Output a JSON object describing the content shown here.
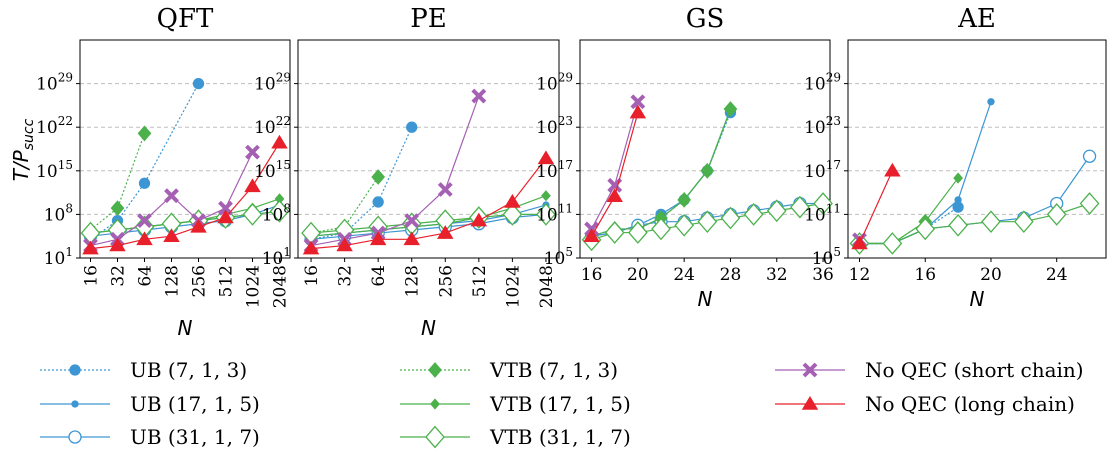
{
  "chart_data": {
    "type": "line",
    "ylabel": "T/P_succ",
    "yscale": "log10",
    "ylim_exp": [
      1,
      36
    ],
    "ytick_exps": [
      1,
      8,
      15,
      22,
      29
    ],
    "gs_ylim_exp": [
      5,
      35
    ],
    "gs_ytick_exps": [
      5,
      11,
      17,
      23,
      29
    ],
    "series_styles": [
      {
        "key": "ub713",
        "name": "UB (7, 1, 3)",
        "color": "#3d96d4",
        "marker": "circle",
        "fill": true,
        "size": 5,
        "dash": "2,2"
      },
      {
        "key": "ub1715",
        "name": "UB (17, 1, 5)",
        "color": "#3d96d4",
        "marker": "circle",
        "fill": true,
        "size": 3,
        "dash": ""
      },
      {
        "key": "ub3117",
        "name": "UB (31, 1, 7)",
        "color": "#3d96d4",
        "marker": "circle",
        "fill": false,
        "size": 6,
        "dash": ""
      },
      {
        "key": "vtb713",
        "name": "VTB (7, 1, 3)",
        "color": "#4bb14b",
        "marker": "diamond",
        "fill": true,
        "size": 6,
        "dash": "2,2"
      },
      {
        "key": "vtb1715",
        "name": "VTB (17, 1, 5)",
        "color": "#4bb14b",
        "marker": "diamond",
        "fill": true,
        "size": 4,
        "dash": ""
      },
      {
        "key": "vtb3117",
        "name": "VTB (31, 1, 7)",
        "color": "#4bb14b",
        "marker": "diamond",
        "fill": false,
        "size": 9,
        "dash": ""
      },
      {
        "key": "noqec_short",
        "name": "No QEC (short chain)",
        "color": "#a560b3",
        "marker": "x",
        "fill": true,
        "size": 6,
        "dash": ""
      },
      {
        "key": "noqec_long",
        "name": "No QEC (long chain)",
        "color": "#e8202b",
        "marker": "triangle",
        "fill": true,
        "size": 7,
        "dash": ""
      }
    ],
    "panels": [
      {
        "title": "QFT",
        "xlabel": "N",
        "xscale": "cat",
        "x_ticks": [
          "16",
          "32",
          "64",
          "128",
          "256",
          "512",
          "1024",
          "2048"
        ],
        "ylim_exp": [
          1,
          36
        ],
        "ytick_exps": [
          1,
          8,
          15,
          22,
          29
        ],
        "series": {
          "ub713": [
            [
              0,
              4
            ],
            [
              1,
              7
            ],
            [
              2,
              13
            ],
            [
              4,
              29
            ]
          ],
          "ub1715": [
            [
              0,
              5
            ],
            [
              1,
              5.5
            ],
            [
              2,
              6
            ],
            [
              3,
              6.5
            ],
            [
              4,
              7
            ],
            [
              5,
              7.5
            ],
            [
              6,
              8
            ],
            [
              7,
              9.5
            ]
          ],
          "ub3117": [
            [
              0,
              4.5
            ],
            [
              1,
              5
            ],
            [
              2,
              5.5
            ],
            [
              3,
              6
            ],
            [
              4,
              6.5
            ],
            [
              5,
              7
            ],
            [
              6,
              8
            ],
            [
              7,
              8.5
            ]
          ],
          "vtb713": [
            [
              0,
              5.5
            ],
            [
              1,
              9
            ],
            [
              2,
              21
            ]
          ],
          "vtb1715": [
            [
              0,
              5
            ],
            [
              1,
              5.5
            ],
            [
              2,
              6
            ],
            [
              3,
              6.5
            ],
            [
              4,
              7
            ],
            [
              5,
              8
            ],
            [
              6,
              9
            ],
            [
              7,
              10.5
            ]
          ],
          "vtb3117": [
            [
              0,
              5
            ],
            [
              1,
              5.5
            ],
            [
              2,
              6
            ],
            [
              3,
              6.5
            ],
            [
              4,
              7
            ],
            [
              5,
              7.5
            ],
            [
              6,
              8
            ],
            [
              7,
              8.5
            ]
          ],
          "noqec_short": [
            [
              0,
              3
            ],
            [
              1,
              4
            ],
            [
              2,
              7
            ],
            [
              3,
              11
            ],
            [
              4,
              7
            ],
            [
              5,
              9
            ],
            [
              6,
              18
            ]
          ],
          "noqec_long": [
            [
              0,
              2.5
            ],
            [
              1,
              3
            ],
            [
              2,
              4
            ],
            [
              3,
              4.5
            ],
            [
              4,
              6
            ],
            [
              5,
              7.5
            ],
            [
              6,
              12.5
            ],
            [
              7,
              19.5
            ]
          ]
        }
      },
      {
        "title": "PE",
        "xlabel": "N",
        "xscale": "cat",
        "x_ticks": [
          "16",
          "32",
          "64",
          "128",
          "256",
          "512",
          "1024",
          "2048"
        ],
        "ylim_exp": [
          1,
          36
        ],
        "ytick_exps": [
          1,
          8,
          15,
          22,
          29
        ],
        "series": {
          "ub713": [
            [
              0,
              4
            ],
            [
              1,
              5
            ],
            [
              2,
              10
            ],
            [
              3,
              22
            ]
          ],
          "ub1715": [
            [
              0,
              4.5
            ],
            [
              1,
              5
            ],
            [
              2,
              5.5
            ],
            [
              3,
              6
            ],
            [
              4,
              6.5
            ],
            [
              5,
              7
            ],
            [
              6,
              8
            ],
            [
              7,
              9.5
            ]
          ],
          "ub3117": [
            [
              0,
              4
            ],
            [
              1,
              4.5
            ],
            [
              2,
              5
            ],
            [
              3,
              5.5
            ],
            [
              4,
              6
            ],
            [
              5,
              6.5
            ],
            [
              6,
              7.5
            ],
            [
              7,
              8
            ]
          ],
          "vtb713": [
            [
              0,
              5
            ],
            [
              1,
              6
            ],
            [
              2,
              14
            ]
          ],
          "vtb1715": [
            [
              0,
              4.5
            ],
            [
              1,
              5
            ],
            [
              2,
              5.5
            ],
            [
              3,
              6
            ],
            [
              4,
              6.5
            ],
            [
              5,
              7.5
            ],
            [
              6,
              9
            ],
            [
              7,
              11
            ]
          ],
          "vtb3117": [
            [
              0,
              5
            ],
            [
              1,
              5.5
            ],
            [
              2,
              6
            ],
            [
              3,
              6.5
            ],
            [
              4,
              7
            ],
            [
              5,
              7.5
            ],
            [
              6,
              8
            ],
            [
              7,
              8
            ]
          ],
          "noqec_short": [
            [
              0,
              3
            ],
            [
              1,
              4
            ],
            [
              2,
              5
            ],
            [
              3,
              7
            ],
            [
              4,
              12
            ],
            [
              5,
              27
            ]
          ],
          "noqec_long": [
            [
              0,
              2.5
            ],
            [
              1,
              3
            ],
            [
              2,
              4
            ],
            [
              3,
              4
            ],
            [
              4,
              5
            ],
            [
              5,
              7
            ],
            [
              6,
              10
            ],
            [
              7,
              17
            ]
          ]
        }
      },
      {
        "title": "GS",
        "xlabel": "N",
        "xscale": "lin",
        "xlim": [
          15,
          36.6
        ],
        "x_ticks": [
          "16",
          "20",
          "24",
          "28",
          "32",
          "36"
        ],
        "x_tick_vals": [
          16,
          20,
          24,
          28,
          32,
          36
        ],
        "ylim_exp": [
          5,
          35
        ],
        "ytick_exps": [
          5,
          11,
          17,
          23,
          29
        ],
        "series": {
          "ub713": [
            [
              16,
              8
            ],
            [
              18,
              8.5
            ],
            [
              20,
              9.5
            ],
            [
              22,
              11
            ],
            [
              24,
              13
            ],
            [
              26,
              17
            ],
            [
              28,
              25
            ]
          ],
          "ub1715": [
            [
              16,
              8
            ],
            [
              18,
              8.5
            ],
            [
              20,
              9.5
            ],
            [
              22,
              11
            ],
            [
              24,
              13
            ],
            [
              26,
              17
            ],
            [
              28,
              25.5
            ]
          ],
          "ub3117": [
            [
              16,
              8
            ],
            [
              18,
              8.5
            ],
            [
              20,
              9.5
            ],
            [
              22,
              10
            ],
            [
              24,
              10
            ],
            [
              26,
              10.5
            ],
            [
              28,
              11
            ],
            [
              30,
              11.5
            ],
            [
              32,
              12
            ],
            [
              34,
              12.5
            ],
            [
              36,
              12.5
            ]
          ],
          "vtb713": [
            [
              16,
              8
            ],
            [
              18,
              9
            ],
            [
              20,
              9
            ],
            [
              22,
              10.5
            ],
            [
              24,
              13
            ],
            [
              26,
              17
            ],
            [
              28,
              25.5
            ]
          ],
          "vtb1715": [
            [
              16,
              8
            ],
            [
              18,
              9
            ],
            [
              20,
              9
            ],
            [
              22,
              10.5
            ],
            [
              24,
              13
            ],
            [
              26,
              17
            ],
            [
              28,
              25.5
            ]
          ],
          "vtb3117": [
            [
              16,
              7.5
            ],
            [
              18,
              8.5
            ],
            [
              20,
              8.5
            ],
            [
              22,
              9
            ],
            [
              24,
              9.5
            ],
            [
              26,
              10
            ],
            [
              28,
              10.5
            ],
            [
              30,
              11
            ],
            [
              32,
              11.5
            ],
            [
              34,
              12
            ],
            [
              36,
              12.5
            ]
          ],
          "noqec_short": [
            [
              16,
              9
            ],
            [
              18,
              15
            ],
            [
              20,
              26.5
            ]
          ],
          "noqec_long": [
            [
              16,
              8
            ],
            [
              18,
              13.5
            ],
            [
              20,
              25
            ]
          ]
        }
      },
      {
        "title": "AE",
        "xlabel": "N",
        "xscale": "lin",
        "xlim": [
          11.3,
          27
        ],
        "x_ticks": [
          "12",
          "16",
          "20",
          "24"
        ],
        "x_tick_vals": [
          12,
          16,
          20,
          24
        ],
        "ylim_exp": [
          5,
          35
        ],
        "ytick_exps": [
          5,
          11,
          17,
          23,
          29
        ],
        "series": {
          "ub713": [
            [
              12,
              7
            ],
            [
              14,
              7
            ],
            [
              16,
              9
            ],
            [
              18,
              12
            ]
          ],
          "ub1715": [
            [
              12,
              7
            ],
            [
              14,
              7
            ],
            [
              16,
              9
            ],
            [
              18,
              13
            ],
            [
              20,
              26.5
            ]
          ],
          "ub3117": [
            [
              12,
              7
            ],
            [
              14,
              7
            ],
            [
              16,
              9
            ],
            [
              18,
              9.5
            ],
            [
              20,
              10
            ],
            [
              22,
              10.5
            ],
            [
              24,
              12.5
            ],
            [
              26,
              19
            ]
          ],
          "vtb713": [
            [
              12,
              7
            ],
            [
              14,
              7
            ],
            [
              16,
              10
            ]
          ],
          "vtb1715": [
            [
              12,
              7
            ],
            [
              14,
              7
            ],
            [
              16,
              10
            ],
            [
              18,
              16
            ]
          ],
          "vtb3117": [
            [
              12,
              7
            ],
            [
              14,
              7
            ],
            [
              16,
              9
            ],
            [
              18,
              9.5
            ],
            [
              20,
              10
            ],
            [
              22,
              10
            ],
            [
              24,
              11
            ],
            [
              26,
              12.5
            ]
          ],
          "noqec_short": [
            [
              12,
              7.5
            ]
          ],
          "noqec_long": [
            [
              12,
              7
            ],
            [
              14,
              17
            ]
          ]
        }
      }
    ]
  }
}
